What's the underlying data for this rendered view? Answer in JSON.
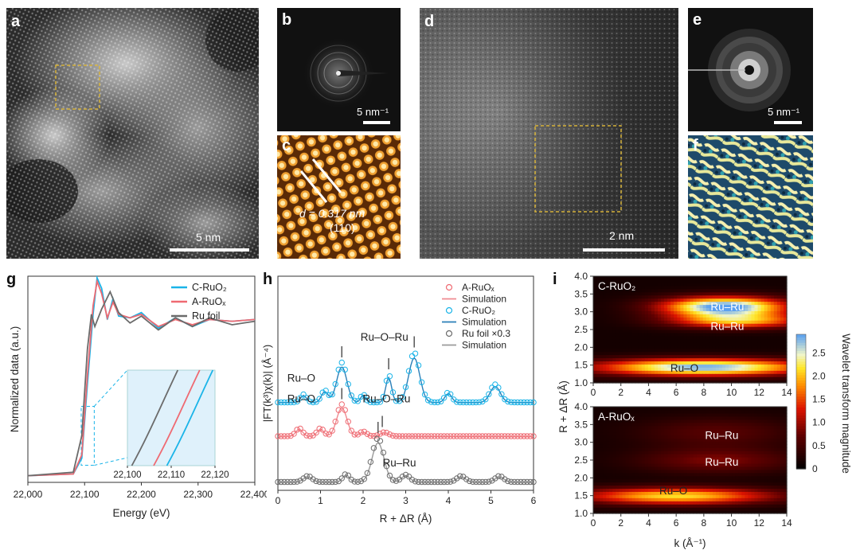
{
  "panels": {
    "a": {
      "label": "a",
      "scalebar": "5 nm"
    },
    "b": {
      "label": "b",
      "scalebar": "5 nm⁻¹"
    },
    "c": {
      "label": "c",
      "d_text": "d = 0.317 nm",
      "plane": "(110)"
    },
    "d": {
      "label": "d",
      "scalebar": "2 nm"
    },
    "e": {
      "label": "e",
      "scalebar": "5 nm⁻¹"
    },
    "f": {
      "label": "f"
    },
    "g": {
      "label": "g"
    },
    "h": {
      "label": "h"
    },
    "i": {
      "label": "i"
    }
  },
  "colors": {
    "cRuO2": "#1ab4e8",
    "aRuOx": "#ef6a72",
    "ruFoil": "#6b6b6b",
    "sim": "#2a7fb8"
  },
  "chart_data": [
    {
      "id": "g",
      "type": "line",
      "xlabel": "Energy (eV)",
      "ylabel": "Normalized data (a.u.)",
      "xlim": [
        22000,
        22400
      ],
      "ticks": [
        "22,000",
        "22,100",
        "22,200",
        "22,300",
        "22,400"
      ],
      "tick_values": [
        22000,
        22100,
        22200,
        22300,
        22400
      ],
      "legend": [
        "C-RuO₂",
        "A-RuOₓ",
        "Ru foil"
      ],
      "series": [
        {
          "name": "C-RuO₂",
          "x": [
            22000,
            22080,
            22095,
            22105,
            22115,
            22122,
            22130,
            22140,
            22150,
            22160,
            22180,
            22200,
            22230,
            22260,
            22290,
            22320,
            22360,
            22400
          ],
          "y": [
            0.02,
            0.03,
            0.12,
            0.55,
            0.95,
            1.16,
            1.1,
            0.92,
            1.04,
            0.94,
            0.93,
            0.96,
            0.87,
            0.93,
            0.88,
            0.92,
            0.91,
            0.92
          ]
        },
        {
          "name": "A-RuOₓ",
          "x": [
            22000,
            22080,
            22095,
            22105,
            22115,
            22122,
            22130,
            22140,
            22150,
            22160,
            22180,
            22200,
            22230,
            22260,
            22290,
            22320,
            22360,
            22400
          ],
          "y": [
            0.02,
            0.03,
            0.14,
            0.6,
            1.0,
            1.14,
            1.07,
            0.93,
            1.02,
            0.95,
            0.93,
            0.95,
            0.88,
            0.92,
            0.89,
            0.92,
            0.91,
            0.92
          ]
        },
        {
          "name": "Ru foil",
          "x": [
            22000,
            22080,
            22095,
            22105,
            22112,
            22118,
            22130,
            22145,
            22160,
            22180,
            22200,
            22230,
            22260,
            22290,
            22320,
            22360,
            22400
          ],
          "y": [
            0.02,
            0.04,
            0.25,
            0.75,
            0.95,
            0.88,
            0.98,
            1.08,
            0.96,
            0.9,
            0.94,
            0.86,
            0.93,
            0.88,
            0.93,
            0.89,
            0.91
          ]
        }
      ],
      "inset": {
        "xlim": [
          22100,
          22120
        ],
        "ticks": [
          "22,100",
          "22,110",
          "22,120"
        ],
        "tick_values": [
          22100,
          22110,
          22120
        ]
      }
    },
    {
      "id": "h",
      "type": "scatter",
      "xlabel": "R + ΔR (Å)",
      "ylabel": "|FT(k³)χ(k)| (Å⁻⁴)",
      "xlim": [
        0,
        6
      ],
      "ticks": [
        "0",
        "1",
        "2",
        "3",
        "4",
        "5",
        "6"
      ],
      "tick_values": [
        0,
        1,
        2,
        3,
        4,
        5,
        6
      ],
      "legend": [
        "A-RuOₓ",
        "Simulation",
        "C-RuO₂",
        "Simulation",
        "Ru foil ×0.3",
        "Simulation"
      ],
      "peak_labels": [
        {
          "text": "Ru–O",
          "x": 0.55,
          "row": "top"
        },
        {
          "text": "Ru–O–Ru",
          "x": 2.5,
          "row": "top_high"
        },
        {
          "text": "Ru–O",
          "x": 0.55,
          "row": "mid"
        },
        {
          "text": "Ru–O–Ru",
          "x": 2.55,
          "row": "mid_high"
        },
        {
          "text": "Ru–Ru",
          "x": 2.85,
          "row": "bottom"
        }
      ],
      "series": [
        {
          "name": "C-RuO₂",
          "offset": 2.0,
          "peaks": [
            [
              0.6,
              0.2,
              0.07
            ],
            [
              1.1,
              0.3,
              0.08
            ],
            [
              1.5,
              1.0,
              0.12
            ],
            [
              2.0,
              0.2,
              0.06
            ],
            [
              2.6,
              0.7,
              0.07
            ],
            [
              3.2,
              1.25,
              0.13
            ],
            [
              4.0,
              0.25,
              0.08
            ],
            [
              5.1,
              0.45,
              0.12
            ]
          ]
        },
        {
          "name": "A-RuOₓ",
          "offset": 1.15,
          "peaks": [
            [
              0.5,
              0.2,
              0.08
            ],
            [
              1.0,
              0.2,
              0.08
            ],
            [
              1.5,
              0.8,
              0.12
            ],
            [
              2.0,
              0.12,
              0.08
            ],
            [
              2.5,
              0.1,
              0.1
            ]
          ]
        },
        {
          "name": "Ru foil ×0.3",
          "offset": 0.0,
          "peaks": [
            [
              0.7,
              0.15,
              0.1
            ],
            [
              1.6,
              0.2,
              0.08
            ],
            [
              2.35,
              1.1,
              0.14
            ],
            [
              3.0,
              0.18,
              0.1
            ],
            [
              4.3,
              0.15,
              0.1
            ],
            [
              5.2,
              0.15,
              0.1
            ]
          ]
        }
      ]
    },
    {
      "id": "i",
      "type": "heatmap",
      "xlabel": "k (Å⁻¹)",
      "ylabel": "R + ΔR (Å)",
      "xlim": [
        0,
        14
      ],
      "ylim": [
        1.0,
        4.0
      ],
      "xticks": [
        "0",
        "2",
        "4",
        "6",
        "8",
        "10",
        "12",
        "14"
      ],
      "xtick_values": [
        0,
        2,
        4,
        6,
        8,
        10,
        12,
        14
      ],
      "yticks": [
        "1.0",
        "1.5",
        "2.0",
        "2.5",
        "3.0",
        "3.5",
        "4.0"
      ],
      "ytick_values": [
        1.0,
        1.5,
        2.0,
        2.5,
        3.0,
        3.5,
        4.0
      ],
      "colorbar": {
        "label": "Wavelet transform magnitude",
        "ticks": [
          "0",
          "0.5",
          "1.0",
          "1.5",
          "2.0",
          "2.5"
        ],
        "tick_values": [
          0,
          0.5,
          1.0,
          1.5,
          2.0,
          2.5
        ],
        "max": 2.9
      },
      "maps": [
        {
          "title": "C-RuO₂",
          "blobs": [
            [
              8,
              1.45,
              5.5,
              0.17,
              2.7
            ],
            [
              9.5,
              3.15,
              3.2,
              0.2,
              2.9
            ],
            [
              10.5,
              2.75,
              3.5,
              0.15,
              1.7
            ]
          ],
          "labels": [
            {
              "text": "Ru–O",
              "k": 6.6,
              "r": 1.42
            },
            {
              "text": "Ru–Ru",
              "k": 9.7,
              "r": 3.15
            },
            {
              "text": "Ru–Ru",
              "k": 9.7,
              "r": 2.6
            }
          ]
        },
        {
          "title": "A-RuOₓ",
          "blobs": [
            [
              6,
              1.5,
              5.0,
              0.17,
              2.0
            ],
            [
              9,
              2.5,
              4.0,
              0.25,
              0.7
            ],
            [
              9,
              3.3,
              4.0,
              0.3,
              0.5
            ]
          ],
          "labels": [
            {
              "text": "Ru–O",
              "k": 5.8,
              "r": 1.65
            },
            {
              "text": "Ru–Ru",
              "k": 9.3,
              "r": 3.2
            },
            {
              "text": "Ru–Ru",
              "k": 9.3,
              "r": 2.45
            }
          ]
        }
      ]
    }
  ]
}
